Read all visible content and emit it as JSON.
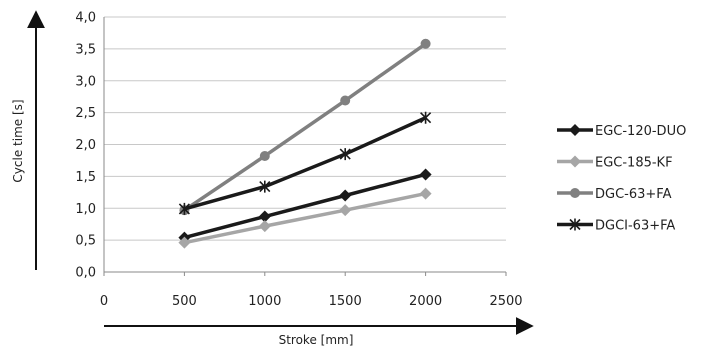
{
  "chart_data": {
    "type": "line",
    "xlabel": "Stroke [mm]",
    "ylabel": "Cycle time [s]",
    "xlim": [
      0,
      2500
    ],
    "ylim": [
      0,
      4
    ],
    "x_ticks": [
      "0",
      "500",
      "1000",
      "1500",
      "2000",
      "2500"
    ],
    "y_ticks": [
      "0,0",
      "0,5",
      "1,0",
      "1,5",
      "2,0",
      "2,5",
      "3,0",
      "3,5",
      "4,0"
    ],
    "grid": "horizontal",
    "legend": "right",
    "series": [
      {
        "name": "EGC-120-DUO",
        "color": "#1a1a1a",
        "marker": "diamond",
        "x": [
          500,
          1000,
          1500,
          2000
        ],
        "values": [
          0.54,
          0.87,
          1.2,
          1.53
        ]
      },
      {
        "name": "EGC-185-KF",
        "color": "#a6a6a6",
        "marker": "diamond",
        "x": [
          500,
          1000,
          1500,
          2000
        ],
        "values": [
          0.46,
          0.72,
          0.97,
          1.23
        ]
      },
      {
        "name": "DGC-63+FA",
        "color": "#808080",
        "marker": "circle",
        "x": [
          500,
          1000,
          1500,
          2000
        ],
        "values": [
          0.97,
          1.82,
          2.69,
          3.58
        ]
      },
      {
        "name": "DGCI-63+FA",
        "color": "#1a1a1a",
        "marker": "star",
        "x": [
          500,
          1000,
          1500,
          2000
        ],
        "values": [
          0.99,
          1.34,
          1.85,
          2.42
        ]
      }
    ]
  }
}
